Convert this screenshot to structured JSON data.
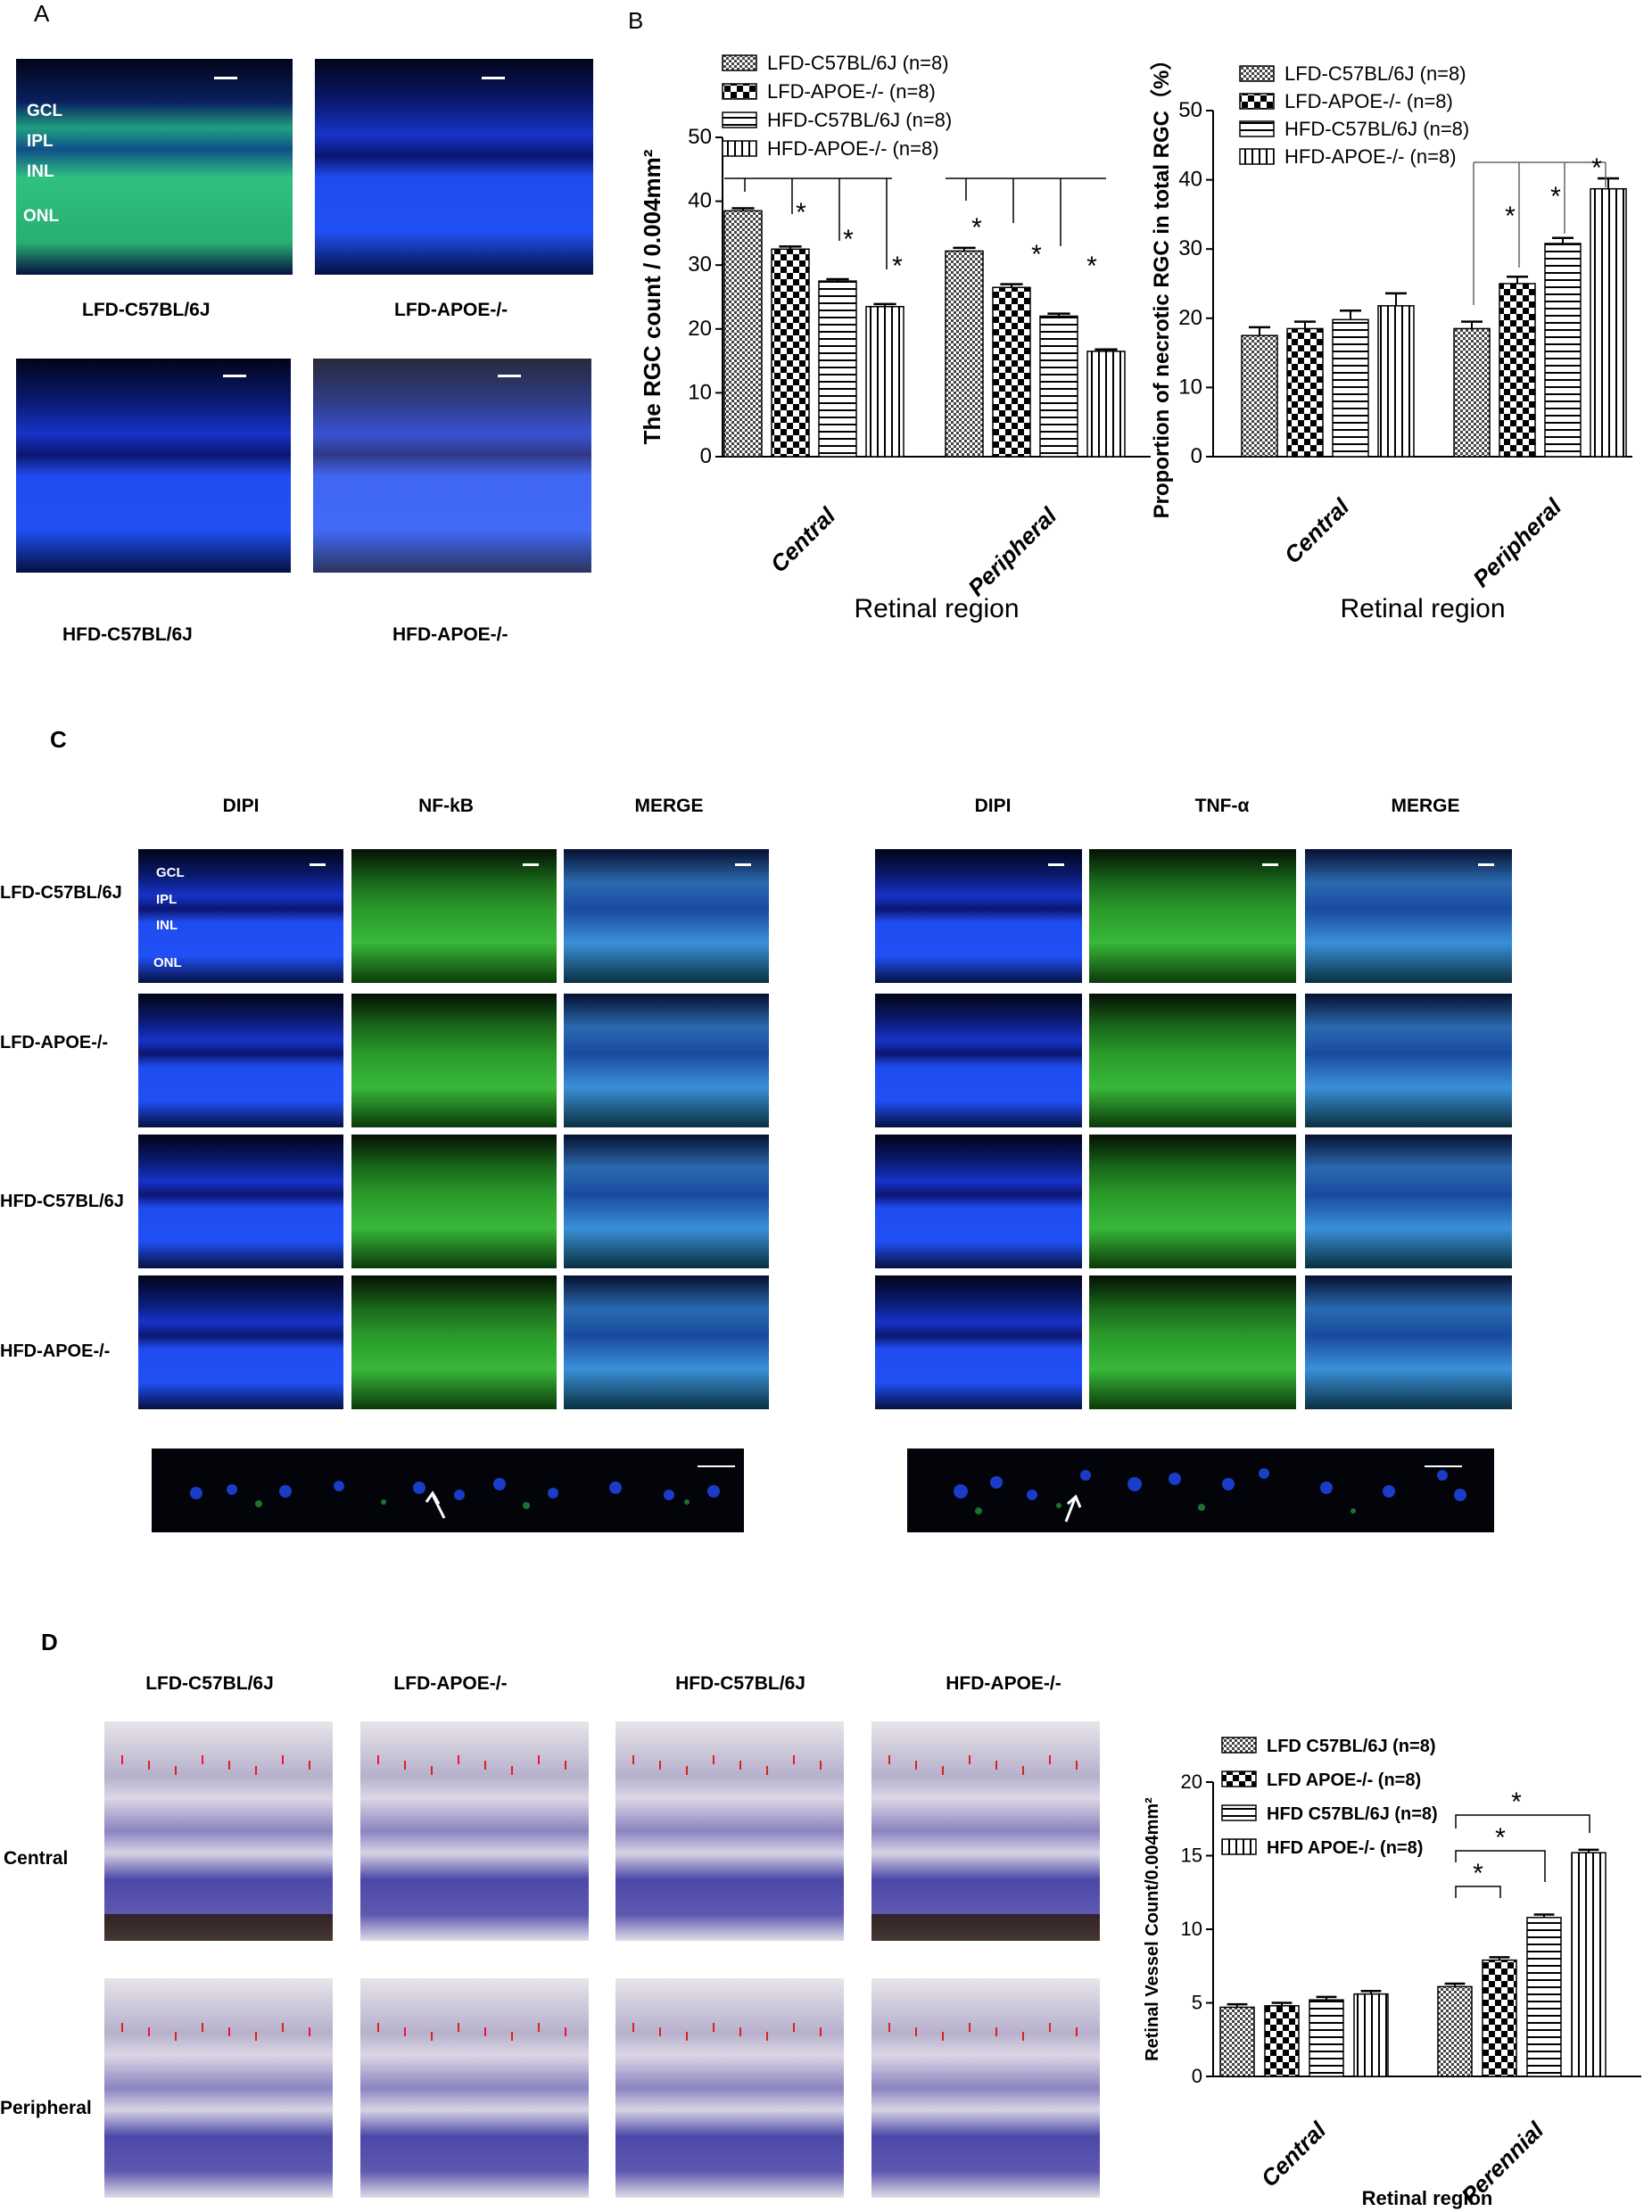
{
  "panels": {
    "a": "A",
    "b": "B",
    "c": "C",
    "d": "D"
  },
  "panel_a": {
    "groups": [
      "LFD-C57BL/6J",
      "LFD-APOE-/-",
      "HFD-C57BL/6J",
      "HFD-APOE-/-"
    ],
    "layers": [
      "GCL",
      "IPL",
      "INL",
      "ONL"
    ]
  },
  "panel_c": {
    "left_columns": [
      "DIPI",
      "NF-kB",
      "MERGE"
    ],
    "right_columns": [
      "DIPI",
      "TNF-α",
      "MERGE"
    ],
    "rows": [
      "LFD-C57BL/6J",
      "LFD-APOE-/-",
      "HFD-C57BL/6J",
      "HFD-APOE-/-"
    ],
    "layers": [
      "GCL",
      "IPL",
      "INL",
      "ONL"
    ]
  },
  "panel_d": {
    "columns": [
      "LFD-C57BL/6J",
      "LFD-APOE-/-",
      "HFD-C57BL/6J",
      "HFD-APOE-/-"
    ],
    "rows": [
      "Central",
      "Peripheral"
    ]
  },
  "chart_data": [
    {
      "type": "bar",
      "id": "b-left",
      "ylabel": "The RGC count / 0.004mm²",
      "xlabel": "Retinal region",
      "categories": [
        "Central",
        "Peripheral"
      ],
      "ylim": [
        0,
        50
      ],
      "yticks": [
        "0",
        "10",
        "20",
        "30",
        "40",
        "50"
      ],
      "series": [
        {
          "name": "LFD-C57BL/6J (n=8)",
          "values": [
            38.5,
            32.2
          ],
          "errors": [
            0.4,
            0.5
          ]
        },
        {
          "name": "LFD-APOE-/- (n=8)",
          "values": [
            32.5,
            26.5
          ],
          "errors": [
            0.4,
            0.5
          ]
        },
        {
          "name": "HFD-C57BL/6J (n=8)",
          "values": [
            27.5,
            22.0
          ],
          "errors": [
            0.3,
            0.4
          ]
        },
        {
          "name": "HFD-APOE-/- (n=8)",
          "values": [
            23.5,
            16.5
          ],
          "errors": [
            0.4,
            0.3
          ]
        }
      ],
      "significance": "*"
    },
    {
      "type": "bar",
      "id": "b-right",
      "ylabel": "Proportion of necrotic RGC in total RGC（%）",
      "xlabel": "Retinal region",
      "categories": [
        "Central",
        "Peripheral"
      ],
      "ylim": [
        0,
        50
      ],
      "yticks": [
        "0",
        "10",
        "20",
        "30",
        "40",
        "50"
      ],
      "series": [
        {
          "name": "LFD-C57BL/6J (n=8)",
          "values": [
            17.5,
            18.5
          ],
          "errors": [
            1.2,
            1.0
          ]
        },
        {
          "name": "LFD-APOE-/- (n=8)",
          "values": [
            18.5,
            25.0
          ],
          "errors": [
            1.0,
            1.0
          ]
        },
        {
          "name": "HFD-C57BL/6J (n=8)",
          "values": [
            19.8,
            30.8
          ],
          "errors": [
            1.3,
            0.8
          ]
        },
        {
          "name": "HFD-APOE-/- (n=8)",
          "values": [
            21.8,
            38.7
          ],
          "errors": [
            1.8,
            1.5
          ]
        }
      ],
      "significance": "*"
    },
    {
      "type": "bar",
      "id": "d-chart",
      "ylabel": "Retinal Vessel Count/0.004mm²",
      "xlabel": "Retinal region",
      "categories": [
        "Central",
        "Perennial"
      ],
      "ylim": [
        0,
        20
      ],
      "yticks": [
        "0",
        "5",
        "10",
        "15",
        "20"
      ],
      "series": [
        {
          "name": "LFD C57BL/6J (n=8)",
          "values": [
            4.7,
            6.1
          ],
          "errors": [
            0.2,
            0.2
          ]
        },
        {
          "name": "LFD APOE-/- (n=8)",
          "values": [
            4.8,
            7.9
          ],
          "errors": [
            0.2,
            0.2
          ]
        },
        {
          "name": "HFD C57BL/6J (n=8)",
          "values": [
            5.2,
            10.8
          ],
          "errors": [
            0.2,
            0.2
          ]
        },
        {
          "name": "HFD APOE-/- (n=8)",
          "values": [
            5.6,
            15.2
          ],
          "errors": [
            0.2,
            0.2
          ]
        }
      ],
      "significance": "*"
    }
  ]
}
